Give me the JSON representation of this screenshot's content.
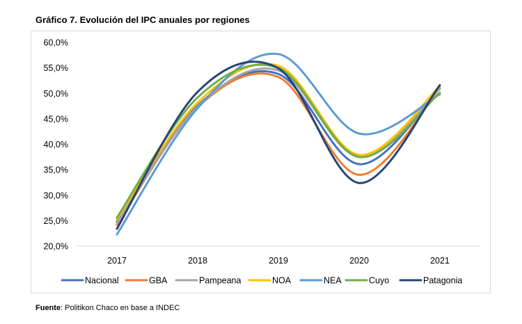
{
  "title": "Gráfico 7. Evolución del IPC anuales por regiones",
  "footer": {
    "label": "Fuente",
    "text": ": Politikon Chaco en base a INDEC"
  },
  "chart_data": {
    "type": "line",
    "smooth": true,
    "categories": [
      "2017",
      "2018",
      "2019",
      "2020",
      "2021"
    ],
    "ylim": [
      20,
      60
    ],
    "yticks": [
      "20,0%",
      "25,0%",
      "30,0%",
      "35,0%",
      "40,0%",
      "45,0%",
      "50,0%",
      "55,0%",
      "60,0%"
    ],
    "ytick_values": [
      20,
      25,
      30,
      35,
      40,
      45,
      50,
      55,
      60
    ],
    "grid": false,
    "legend_position": "bottom",
    "series": [
      {
        "name": "Nacional",
        "color": "#4472C4",
        "values": [
          24.8,
          47.6,
          53.8,
          36.1,
          50.9
        ]
      },
      {
        "name": "GBA",
        "color": "#ED7D31",
        "values": [
          24.2,
          47.3,
          53.2,
          34.0,
          51.0
        ]
      },
      {
        "name": "Pampeana",
        "color": "#A5A5A5",
        "values": [
          24.5,
          47.4,
          54.5,
          37.5,
          50.9
        ]
      },
      {
        "name": "NOA",
        "color": "#FFC000",
        "values": [
          25.3,
          48.2,
          55.4,
          37.9,
          51.4
        ]
      },
      {
        "name": "NEA",
        "color": "#5B9BD5",
        "values": [
          22.3,
          47.1,
          57.7,
          42.1,
          49.8
        ]
      },
      {
        "name": "Cuyo",
        "color": "#70AD47",
        "values": [
          25.6,
          49.2,
          55.0,
          37.5,
          50.1
        ]
      },
      {
        "name": "Patagonia",
        "color": "#264478",
        "values": [
          23.4,
          50.3,
          54.9,
          32.4,
          51.6
        ]
      }
    ]
  }
}
